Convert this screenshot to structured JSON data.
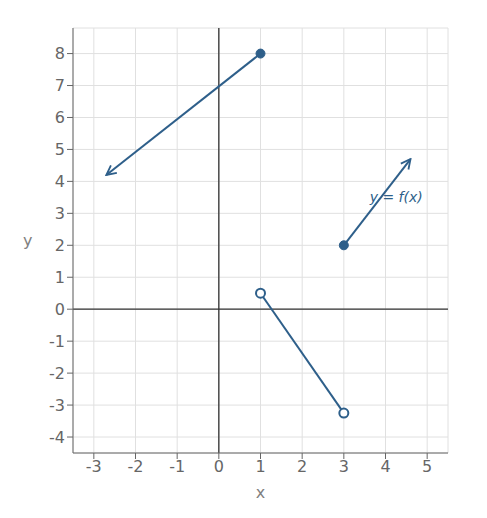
{
  "chart_data": {
    "type": "line",
    "xlabel": "x",
    "ylabel": "y",
    "xlim": [
      -3.5,
      5.5
    ],
    "ylim": [
      -4.5,
      8.8
    ],
    "xticks": [
      -3,
      -2,
      -1,
      0,
      1,
      2,
      3,
      4,
      5
    ],
    "yticks": [
      -4,
      -3,
      -2,
      -1,
      0,
      1,
      2,
      3,
      4,
      5,
      6,
      7,
      8
    ],
    "grid": true,
    "series": [
      {
        "color": "#2E5F8A",
        "x": [
          1,
          -2.7
        ],
        "values": [
          8,
          4.2
        ],
        "marker": "closed",
        "line_style": "arrow"
      },
      {
        "color": "#2E5F8A",
        "x": [
          1,
          3
        ],
        "values": [
          0.5,
          -3.25
        ],
        "marker": "open",
        "line_style": "solid"
      },
      {
        "color": "#2E5F8A",
        "x": [
          3,
          4.6
        ],
        "values": [
          2,
          4.7
        ],
        "marker": "closed",
        "line_style": "arrow"
      }
    ],
    "annotations": [
      {
        "text": "y = f(x)",
        "x": 3.5,
        "y": 3.5,
        "color": "#2E5F8A"
      }
    ]
  }
}
